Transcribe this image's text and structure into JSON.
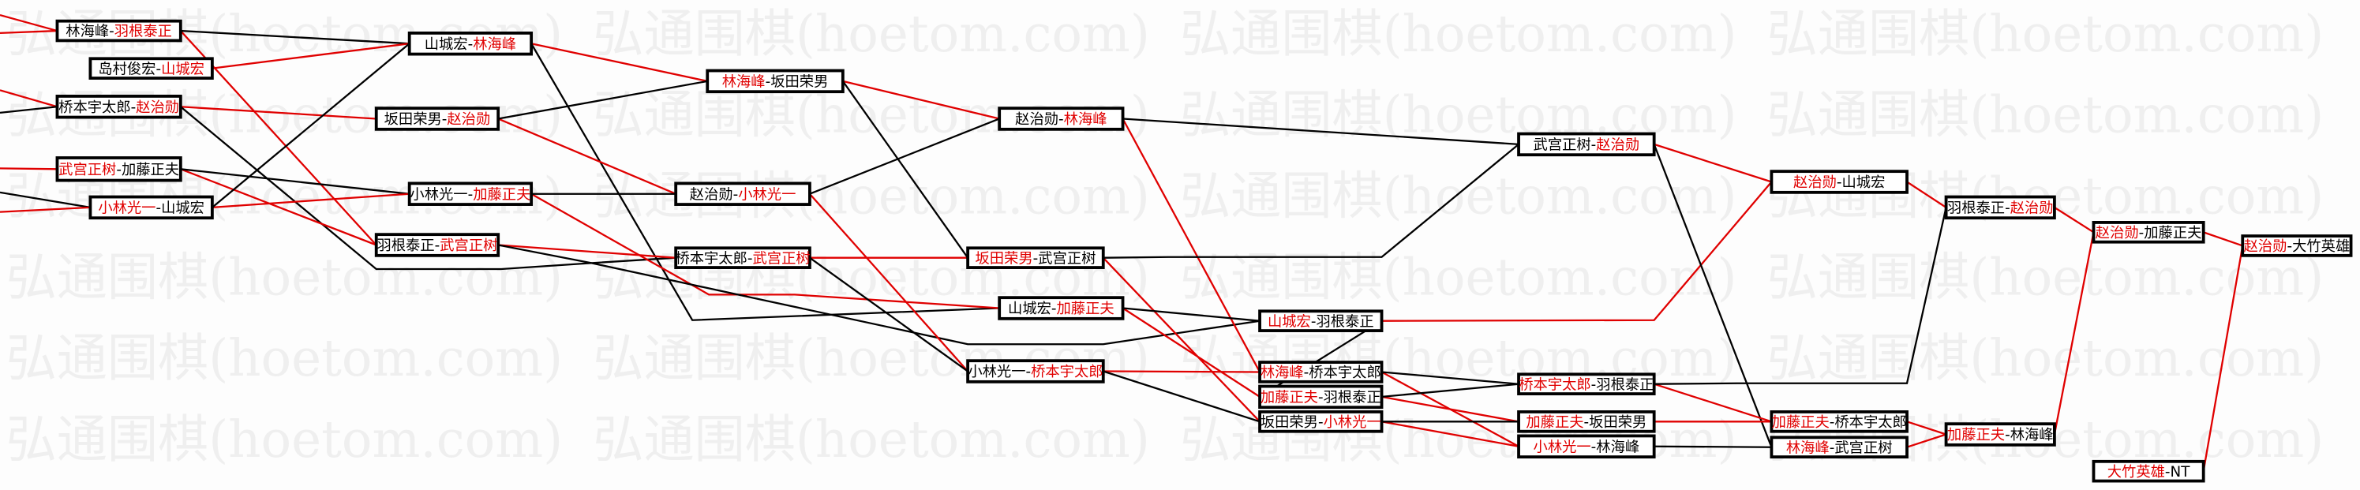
{
  "watermark": "弘通围棋(hoetom.com)",
  "colors": {
    "winner": "#e00000",
    "loser": "#000000",
    "win_line": "#e00000",
    "lose_line": "#000000"
  },
  "bracket": {
    "matches": [
      {
        "id": "A",
        "left": "林海峰",
        "right": "羽根泰正",
        "winner": "right"
      },
      {
        "id": "B",
        "left": "岛村俊宏",
        "right": "山城宏",
        "winner": "right"
      },
      {
        "id": "C",
        "left": "桥本宇太郎",
        "right": "赵治勋",
        "winner": "right"
      },
      {
        "id": "D",
        "left": "武宫正树",
        "right": "加藤正夫",
        "winner": "left"
      },
      {
        "id": "E",
        "left": "小林光一",
        "right": "山城宏",
        "winner": "left"
      },
      {
        "id": "F",
        "left": "山城宏",
        "right": "林海峰",
        "winner": "right"
      },
      {
        "id": "G",
        "left": "坂田荣男",
        "right": "赵治勋",
        "winner": "right"
      },
      {
        "id": "H",
        "left": "小林光一",
        "right": "加藤正夫",
        "winner": "right"
      },
      {
        "id": "I",
        "left": "羽根泰正",
        "right": "武宫正树",
        "winner": "right"
      },
      {
        "id": "J",
        "left": "林海峰",
        "right": "坂田荣男",
        "winner": "left"
      },
      {
        "id": "K",
        "left": "赵治勋",
        "right": "小林光一",
        "winner": "right"
      },
      {
        "id": "L",
        "left": "桥本宇太郎",
        "right": "武宫正树",
        "winner": "right"
      },
      {
        "id": "M",
        "left": "赵治勋",
        "right": "林海峰",
        "winner": "right"
      },
      {
        "id": "N",
        "left": "坂田荣男",
        "right": "武宫正树",
        "winner": "left"
      },
      {
        "id": "O",
        "left": "山城宏",
        "right": "加藤正夫",
        "winner": "right"
      },
      {
        "id": "P",
        "left": "小林光一",
        "right": "桥本宇太郎",
        "winner": "right"
      },
      {
        "id": "Q",
        "left": "山城宏",
        "right": "羽根泰正",
        "winner": "left"
      },
      {
        "id": "R",
        "left": "林海峰",
        "right": "桥本宇太郎",
        "winner": "left"
      },
      {
        "id": "S",
        "left": "加藤正夫",
        "right": "羽根泰正",
        "winner": "left"
      },
      {
        "id": "T",
        "left": "坂田荣男",
        "right": "小林光一",
        "winner": "right"
      },
      {
        "id": "U",
        "left": "武宫正树",
        "right": "赵治勋",
        "winner": "right"
      },
      {
        "id": "V",
        "left": "桥本宇太郎",
        "right": "羽根泰正",
        "winner": "left"
      },
      {
        "id": "W",
        "left": "加藤正夫",
        "right": "坂田荣男",
        "winner": "left"
      },
      {
        "id": "X",
        "left": "小林光一",
        "right": "林海峰",
        "winner": "left"
      },
      {
        "id": "Y",
        "left": "赵治勋",
        "right": "山城宏",
        "winner": "left"
      },
      {
        "id": "Z",
        "left": "加藤正夫",
        "right": "桥本宇太郎",
        "winner": "left"
      },
      {
        "id": "AA",
        "left": "林海峰",
        "right": "武宫正树",
        "winner": "left"
      },
      {
        "id": "AB",
        "left": "羽根泰正",
        "right": "赵治勋",
        "winner": "right"
      },
      {
        "id": "AC",
        "left": "加藤正夫",
        "right": "林海峰",
        "winner": "left"
      },
      {
        "id": "AD",
        "left": "赵治勋",
        "right": "加藤正夫",
        "winner": "left"
      },
      {
        "id": "AE",
        "left": "大竹英雄",
        "right": "NT",
        "winner": "left"
      },
      {
        "id": "AF",
        "left": "赵治勋",
        "right": "大竹英雄",
        "winner": "left"
      }
    ],
    "links": [
      {
        "from": "A",
        "to": "I",
        "result": "win"
      },
      {
        "from": "A",
        "to": "F",
        "result": "lose"
      },
      {
        "from": "B",
        "to": "F",
        "result": "win"
      },
      {
        "from": "C",
        "to": "G",
        "result": "win"
      },
      {
        "from": "C",
        "to": "L",
        "result": "lose"
      },
      {
        "from": "D",
        "to": "I",
        "result": "win"
      },
      {
        "from": "D",
        "to": "H",
        "result": "lose"
      },
      {
        "from": "E",
        "to": "H",
        "result": "win"
      },
      {
        "from": "E",
        "to": "F",
        "result": "lose"
      },
      {
        "from": "F",
        "to": "J",
        "result": "win"
      },
      {
        "from": "F",
        "to": "O",
        "result": "lose"
      },
      {
        "from": "G",
        "to": "K",
        "result": "win"
      },
      {
        "from": "G",
        "to": "J",
        "result": "lose"
      },
      {
        "from": "H",
        "to": "O",
        "result": "win"
      },
      {
        "from": "H",
        "to": "K",
        "result": "lose"
      },
      {
        "from": "I",
        "to": "L",
        "result": "win"
      },
      {
        "from": "I",
        "to": "Q",
        "result": "lose"
      },
      {
        "from": "J",
        "to": "M",
        "result": "win"
      },
      {
        "from": "J",
        "to": "N",
        "result": "lose"
      },
      {
        "from": "K",
        "to": "P",
        "result": "win"
      },
      {
        "from": "K",
        "to": "M",
        "result": "lose"
      },
      {
        "from": "L",
        "to": "N",
        "result": "win"
      },
      {
        "from": "L",
        "to": "P",
        "result": "lose"
      },
      {
        "from": "M",
        "to": "R",
        "result": "win"
      },
      {
        "from": "M",
        "to": "U",
        "result": "lose"
      },
      {
        "from": "N",
        "to": "T",
        "result": "win"
      },
      {
        "from": "N",
        "to": "U",
        "result": "lose"
      },
      {
        "from": "O",
        "to": "S",
        "result": "win"
      },
      {
        "from": "O",
        "to": "Q",
        "result": "lose"
      },
      {
        "from": "P",
        "to": "R",
        "result": "win"
      },
      {
        "from": "P",
        "to": "T",
        "result": "lose"
      },
      {
        "from": "Q",
        "to": "Y",
        "result": "win"
      },
      {
        "from": "Q",
        "to": "S",
        "result": "lose"
      },
      {
        "from": "R",
        "to": "X",
        "result": "win"
      },
      {
        "from": "R",
        "to": "V",
        "result": "lose"
      },
      {
        "from": "S",
        "to": "W",
        "result": "win"
      },
      {
        "from": "S",
        "to": "V",
        "result": "lose"
      },
      {
        "from": "T",
        "to": "X",
        "result": "win"
      },
      {
        "from": "T",
        "to": "W",
        "result": "lose"
      },
      {
        "from": "U",
        "to": "Y",
        "result": "win"
      },
      {
        "from": "U",
        "to": "AA",
        "result": "lose"
      },
      {
        "from": "V",
        "to": "Z",
        "result": "win"
      },
      {
        "from": "V",
        "to": "AB",
        "result": "lose"
      },
      {
        "from": "W",
        "to": "Z",
        "result": "win"
      },
      {
        "from": "X",
        "to": "AA",
        "result": "lose"
      },
      {
        "from": "Y",
        "to": "AB",
        "result": "win"
      },
      {
        "from": "Z",
        "to": "AC",
        "result": "win"
      },
      {
        "from": "AA",
        "to": "AC",
        "result": "win"
      },
      {
        "from": "AB",
        "to": "AD",
        "result": "win"
      },
      {
        "from": "AC",
        "to": "AD",
        "result": "win"
      },
      {
        "from": "AD",
        "to": "AF",
        "result": "win"
      },
      {
        "from": "AE",
        "to": "AF",
        "result": "win"
      }
    ]
  }
}
